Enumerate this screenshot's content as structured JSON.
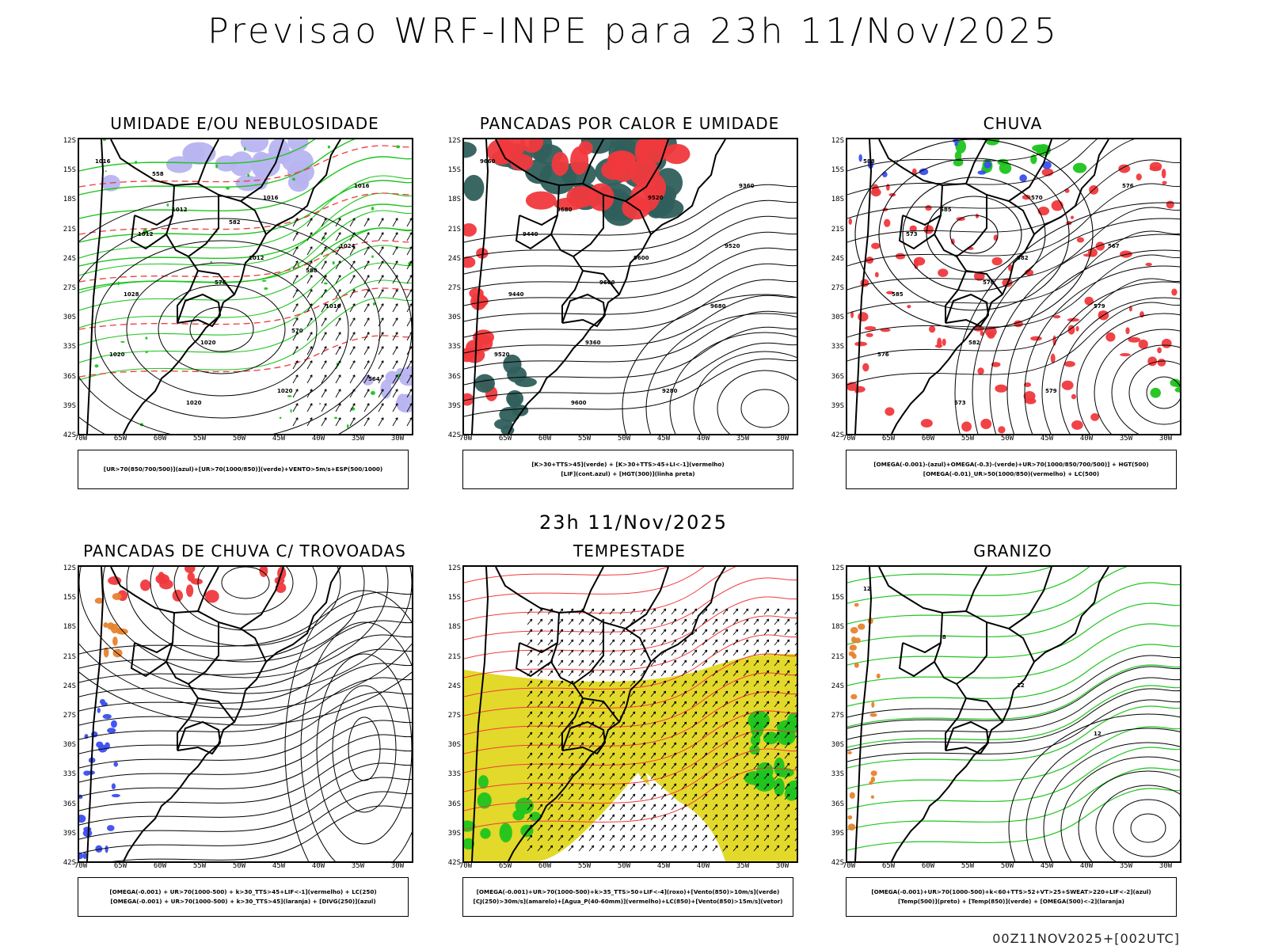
{
  "title": "Previsao WRF-INPE  para 23h 11/Nov/2025",
  "mid_title": "23h 11/Nov/2025",
  "footer": "00Z11NOV2025+[002UTC]",
  "y_ticks": [
    "12S",
    "15S",
    "18S",
    "21S",
    "24S",
    "27S",
    "30S",
    "33S",
    "36S",
    "39S",
    "42S"
  ],
  "x_ticks": [
    "70W",
    "65W",
    "60W",
    "55W",
    "50W",
    "45W",
    "40W",
    "35W",
    "30W"
  ],
  "colors": {
    "red": "#f0393d",
    "green": "#1fc41f",
    "blue": "#3b4ef0",
    "lavender": "#b8b4f0",
    "teal": "#2f5f5c",
    "yellow": "#e2d92a",
    "orange": "#e8822c"
  },
  "panels": [
    {
      "id": "umidade",
      "title": "UMIDADE E/OU NEBULOSIDADE",
      "legend": [
        "[UR>70(850/700/500)](azul)+[UR>70(1000/850)](verde)+VENTO>5m/s+ESP(500/1000)"
      ],
      "contour_labels": [
        "1016",
        "1012",
        "1012",
        "1016",
        "1020",
        "1020",
        "1016",
        "1024",
        "1028",
        "1020",
        "1020",
        "1016",
        "1012",
        "576",
        "570",
        "564",
        "558",
        "582",
        "588"
      ]
    },
    {
      "id": "pancadas-calor",
      "title": "PANCADAS POR CALOR E UMIDADE",
      "legend": [
        "[K>30+TTS>45](verde) + [K>30+TTS>45+LI<-1](vermelho)",
        "[LIF](cont.azul) + [HGT(300)](linha preta)"
      ],
      "contour_labels": [
        "9660",
        "9680",
        "9600",
        "9680",
        "9520",
        "9600",
        "9520",
        "9520",
        "9440",
        "9360",
        "9280",
        "9360",
        "9440",
        "9600"
      ]
    },
    {
      "id": "chuva",
      "title": "CHUVA",
      "legend": [
        "[OMEGA(-0.001)-(azul)+OMEGA(-0.3)-(verde)+UR>70(1000/850/700/500)] + HGT(500)",
        "[OMEGA(-0.01)_UR>50(1000/850)(vermelho) + LC(500)"
      ],
      "contour_labels": [
        "588",
        "585",
        "582",
        "579",
        "576",
        "573",
        "570",
        "567",
        "585",
        "582",
        "579",
        "576",
        "573",
        "570"
      ]
    },
    {
      "id": "pancadas-trovoadas",
      "title": "PANCADAS DE CHUVA C/ TROVOADAS",
      "legend": [
        "[OMEGA(-0.001) + UR>70(1000-500) + k>30_TTS>45+LIF<-1](vermelho) + LC(250)",
        "[OMEGA(-0.001) + UR>70(1000-500) + k>30_TTS>45](laranja) + [DIVG(250)](azul)"
      ],
      "contour_labels": []
    },
    {
      "id": "tempestade",
      "title": "TEMPESTADE",
      "legend": [
        "[OMEGA(-0.001)+UR>70(1000-500)+k>35_TTS>50+LIF<-4](roxo)+[Vento(850)>10m/s](verde)",
        "[CJ(250)>30m/s](amarelo)+[Agua_P(40-60mm)](vermelho)+LC(850)+[Vento(850)>15m/s](vetor)"
      ],
      "contour_labels": []
    },
    {
      "id": "granizo",
      "title": "GRANIZO",
      "legend": [
        "[OMEGA(-0.001)+UR>70(1000-500)+k<60+TTS>52+VT>25+SWEAT>220+LIF<-2](azul)",
        "[Temp(500)](preto) + [Temp(850)](verde) + [OMEGA(500)<-2](laranja)"
      ],
      "contour_labels": [
        "12",
        "-8",
        "12",
        "12"
      ]
    }
  ]
}
